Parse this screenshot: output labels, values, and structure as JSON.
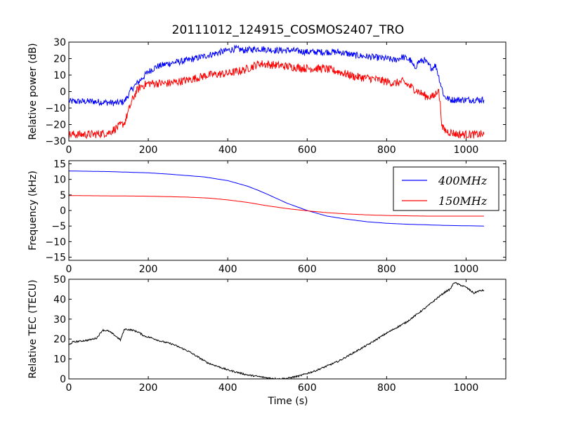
{
  "figure": {
    "title": "20111012_124915_COSMOS2407_TRO",
    "xlabel": "Time (s)"
  },
  "chart_data": [
    {
      "type": "line",
      "ylabel": "Relative power (dB)",
      "xlim": [
        0,
        1100
      ],
      "ylim": [
        -30,
        30
      ],
      "xticks": [
        0,
        200,
        400,
        600,
        800,
        1000
      ],
      "yticks": [
        -30,
        -20,
        -10,
        0,
        10,
        20,
        30
      ],
      "grid": false,
      "legend": false,
      "series": [
        {
          "color": "#0000ff",
          "noise": 2.0,
          "points": [
            [
              0,
              -6
            ],
            [
              60,
              -6
            ],
            [
              120,
              -7
            ],
            [
              140,
              -6
            ],
            [
              160,
              2
            ],
            [
              180,
              7
            ],
            [
              200,
              12
            ],
            [
              220,
              15
            ],
            [
              250,
              17
            ],
            [
              300,
              19
            ],
            [
              350,
              22
            ],
            [
              400,
              25
            ],
            [
              420,
              26
            ],
            [
              440,
              25
            ],
            [
              480,
              26
            ],
            [
              520,
              25
            ],
            [
              560,
              25
            ],
            [
              600,
              24
            ],
            [
              640,
              24
            ],
            [
              680,
              24
            ],
            [
              720,
              22
            ],
            [
              760,
              21
            ],
            [
              800,
              20
            ],
            [
              820,
              19
            ],
            [
              840,
              21
            ],
            [
              860,
              19
            ],
            [
              870,
              14
            ],
            [
              880,
              18
            ],
            [
              895,
              19
            ],
            [
              905,
              16
            ],
            [
              915,
              14
            ],
            [
              920,
              16
            ],
            [
              925,
              15
            ],
            [
              930,
              10
            ],
            [
              937,
              4
            ],
            [
              945,
              -3
            ],
            [
              960,
              -5
            ],
            [
              1000,
              -5
            ],
            [
              1045,
              -5
            ]
          ]
        },
        {
          "color": "#ff0000",
          "noise": 2.5,
          "points": [
            [
              0,
              -26
            ],
            [
              60,
              -26
            ],
            [
              100,
              -25
            ],
            [
              120,
              -22
            ],
            [
              140,
              -19
            ],
            [
              150,
              -12
            ],
            [
              160,
              -5
            ],
            [
              170,
              0
            ],
            [
              180,
              3
            ],
            [
              200,
              5
            ],
            [
              250,
              5
            ],
            [
              300,
              7
            ],
            [
              350,
              10
            ],
            [
              400,
              11
            ],
            [
              440,
              13
            ],
            [
              460,
              15
            ],
            [
              480,
              17
            ],
            [
              520,
              16
            ],
            [
              560,
              15
            ],
            [
              600,
              14
            ],
            [
              640,
              14
            ],
            [
              680,
              12
            ],
            [
              720,
              9
            ],
            [
              760,
              8
            ],
            [
              800,
              6
            ],
            [
              820,
              5
            ],
            [
              840,
              6
            ],
            [
              860,
              3
            ],
            [
              880,
              0
            ],
            [
              900,
              -3
            ],
            [
              920,
              -3
            ],
            [
              930,
              2
            ],
            [
              935,
              -8
            ],
            [
              940,
              -22
            ],
            [
              950,
              -24
            ],
            [
              980,
              -26
            ],
            [
              1045,
              -26
            ]
          ]
        }
      ]
    },
    {
      "type": "line",
      "ylabel": "Frequency (kHz)",
      "xlim": [
        0,
        1100
      ],
      "ylim": [
        -16,
        16
      ],
      "xticks": [
        0,
        200,
        400,
        600,
        800,
        1000
      ],
      "yticks": [
        -15,
        -10,
        -5,
        0,
        5,
        10,
        15
      ],
      "grid": false,
      "legend": "top-right",
      "series": [
        {
          "name": "400MHz",
          "color": "#0000ff",
          "noise": 0,
          "points": [
            [
              0,
              12.7
            ],
            [
              100,
              12.5
            ],
            [
              200,
              12.1
            ],
            [
              250,
              11.7
            ],
            [
              300,
              11.2
            ],
            [
              340,
              10.8
            ],
            [
              400,
              9.6
            ],
            [
              450,
              7.8
            ],
            [
              480,
              6.3
            ],
            [
              500,
              5.2
            ],
            [
              550,
              2.3
            ],
            [
              600,
              0
            ],
            [
              650,
              -1.8
            ],
            [
              700,
              -2.8
            ],
            [
              750,
              -3.6
            ],
            [
              800,
              -4.1
            ],
            [
              850,
              -4.4
            ],
            [
              900,
              -4.6
            ],
            [
              950,
              -4.8
            ],
            [
              1000,
              -4.9
            ],
            [
              1045,
              -5.0
            ]
          ]
        },
        {
          "name": "150MHz",
          "color": "#ff0000",
          "noise": 0,
          "points": [
            [
              0,
              4.8
            ],
            [
              100,
              4.7
            ],
            [
              200,
              4.6
            ],
            [
              300,
              4.3
            ],
            [
              350,
              4.0
            ],
            [
              400,
              3.4
            ],
            [
              450,
              2.6
            ],
            [
              500,
              1.5
            ],
            [
              550,
              0.6
            ],
            [
              600,
              -0.1
            ],
            [
              650,
              -0.7
            ],
            [
              700,
              -1.1
            ],
            [
              750,
              -1.4
            ],
            [
              800,
              -1.6
            ],
            [
              850,
              -1.7
            ],
            [
              900,
              -1.8
            ],
            [
              1000,
              -1.8
            ],
            [
              1045,
              -1.8
            ]
          ]
        }
      ]
    },
    {
      "type": "line",
      "ylabel": "Relative TEC (TECU)",
      "xlim": [
        0,
        1100
      ],
      "ylim": [
        0,
        50
      ],
      "xticks": [
        0,
        200,
        400,
        600,
        800,
        1000
      ],
      "yticks": [
        0,
        10,
        20,
        30,
        40,
        50
      ],
      "grid": false,
      "legend": false,
      "series": [
        {
          "color": "#000000",
          "noise": 0.4,
          "points": [
            [
              0,
              17
            ],
            [
              10,
              18.5
            ],
            [
              30,
              19
            ],
            [
              50,
              19.5
            ],
            [
              70,
              20.5
            ],
            [
              85,
              24.5
            ],
            [
              100,
              24
            ],
            [
              115,
              22
            ],
            [
              130,
              19.5
            ],
            [
              140,
              25
            ],
            [
              160,
              24.5
            ],
            [
              175,
              23.5
            ],
            [
              190,
              21.5
            ],
            [
              210,
              20.5
            ],
            [
              230,
              19
            ],
            [
              260,
              17.5
            ],
            [
              300,
              14
            ],
            [
              350,
              8
            ],
            [
              400,
              4.5
            ],
            [
              450,
              2
            ],
            [
              500,
              0.5
            ],
            [
              530,
              0
            ],
            [
              550,
              0.3
            ],
            [
              580,
              1.5
            ],
            [
              620,
              4
            ],
            [
              680,
              9
            ],
            [
              720,
              13.5
            ],
            [
              760,
              18
            ],
            [
              800,
              23
            ],
            [
              850,
              28.5
            ],
            [
              900,
              36
            ],
            [
              930,
              41
            ],
            [
              950,
              44
            ],
            [
              960,
              45
            ],
            [
              970,
              48.5
            ],
            [
              980,
              47.5
            ],
            [
              1000,
              46
            ],
            [
              1020,
              43
            ],
            [
              1030,
              44
            ],
            [
              1045,
              44.5
            ]
          ]
        }
      ]
    }
  ]
}
